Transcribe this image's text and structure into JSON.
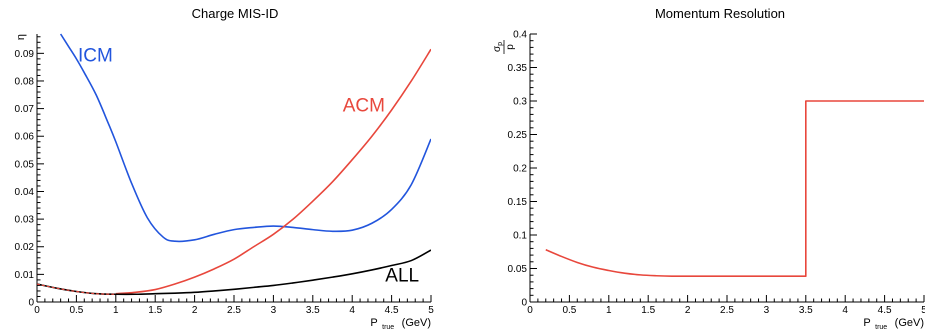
{
  "chart_data": [
    {
      "type": "line",
      "title": "Charge MIS-ID",
      "ylabel": "η",
      "xlabel": {
        "main": "P",
        "sub": "true",
        "unit": "(GeV)"
      },
      "xlim": [
        0,
        5
      ],
      "ylim": [
        0,
        0.097
      ],
      "xticks": [
        "0",
        "0.5",
        "1",
        "1.5",
        "2",
        "2.5",
        "3",
        "3.5",
        "4",
        "4.5",
        "5"
      ],
      "yticks": [
        "0",
        "0.01",
        "0.02",
        "0.03",
        "0.04",
        "0.05",
        "0.06",
        "0.07",
        "0.08",
        "0.09"
      ],
      "grid": false,
      "legend": "none",
      "series": [
        {
          "name": "ICM",
          "color": "#2255dd",
          "x": [
            0.3,
            0.4,
            0.5,
            0.6,
            0.75,
            0.9,
            1.0,
            1.2,
            1.4,
            1.6,
            1.75,
            2.0,
            2.25,
            2.5,
            2.75,
            3.0,
            3.25,
            3.5,
            3.75,
            4.0,
            4.25,
            4.5,
            4.75,
            5.0
          ],
          "y": [
            0.097,
            0.0925,
            0.088,
            0.083,
            0.075,
            0.065,
            0.058,
            0.043,
            0.0305,
            0.0235,
            0.022,
            0.0225,
            0.0245,
            0.0262,
            0.027,
            0.0275,
            0.027,
            0.0262,
            0.0256,
            0.026,
            0.0285,
            0.0335,
            0.0425,
            0.059
          ]
        },
        {
          "name": "ACM",
          "color": "#e8473c",
          "x": [
            1.0,
            1.25,
            1.5,
            1.75,
            2.0,
            2.25,
            2.5,
            2.75,
            3.0,
            3.25,
            3.5,
            3.75,
            4.0,
            4.25,
            4.5,
            4.75,
            5.0
          ],
          "y": [
            0.003,
            0.0035,
            0.0045,
            0.0065,
            0.009,
            0.012,
            0.0155,
            0.02,
            0.0245,
            0.03,
            0.0365,
            0.0435,
            0.0515,
            0.06,
            0.0695,
            0.08,
            0.0915
          ]
        },
        {
          "name": "ALL",
          "color": "#000000",
          "x": [
            0.0,
            0.25,
            0.5,
            0.75,
            1.0,
            1.25,
            1.5,
            1.75,
            2.0,
            2.25,
            2.5,
            2.75,
            3.0,
            3.25,
            3.5,
            3.75,
            4.0,
            4.25,
            4.5,
            4.75,
            5.0
          ],
          "y": [
            0.0065,
            0.005,
            0.0038,
            0.003,
            0.0028,
            0.0028,
            0.003,
            0.0032,
            0.0035,
            0.004,
            0.0046,
            0.0053,
            0.006,
            0.0069,
            0.0079,
            0.009,
            0.0102,
            0.0116,
            0.0132,
            0.015,
            0.0188
          ]
        },
        {
          "name": "",
          "color": "#e8473c",
          "dash": true,
          "x": [
            0.0,
            0.25,
            0.5,
            0.75,
            1.0
          ],
          "y": [
            0.0065,
            0.005,
            0.0038,
            0.003,
            0.0028
          ]
        }
      ],
      "annotations": [
        {
          "text": "ICM",
          "x": 0.52,
          "y": 0.087,
          "color": "#2255dd"
        },
        {
          "text": "ACM",
          "x": 3.88,
          "y": 0.069,
          "color": "#e8473c"
        },
        {
          "text": "ALL",
          "x": 4.42,
          "y": 0.0075,
          "color": "#000000"
        }
      ]
    },
    {
      "type": "line",
      "title": "Momentum Resolution",
      "ylabel": {
        "num": "σ",
        "num_sub": "p",
        "den": "p"
      },
      "xlabel": {
        "main": "P",
        "sub": "true",
        "unit": "(GeV)"
      },
      "xlim": [
        0,
        5
      ],
      "ylim": [
        0,
        0.4
      ],
      "xticks": [
        "0",
        "0.5",
        "1",
        "1.5",
        "2",
        "2.5",
        "3",
        "3.5",
        "4",
        "4.5",
        "5"
      ],
      "yticks": [
        "0",
        "0.05",
        "0.1",
        "0.15",
        "0.2",
        "0.25",
        "0.3",
        "0.35",
        "0.4"
      ],
      "grid": false,
      "legend": "none",
      "series": [
        {
          "name": "",
          "color": "#e8473c",
          "x": [
            0.2,
            0.4,
            0.6,
            0.8,
            1.0,
            1.2,
            1.4,
            1.6,
            1.8,
            2.0,
            2.5,
            3.0,
            3.5,
            3.5,
            4.0,
            4.5,
            5.0
          ],
          "y": [
            0.078,
            0.068,
            0.059,
            0.052,
            0.047,
            0.043,
            0.0405,
            0.0392,
            0.0385,
            0.0385,
            0.0385,
            0.0385,
            0.0385,
            0.3,
            0.3,
            0.3,
            0.3
          ]
        }
      ]
    }
  ]
}
